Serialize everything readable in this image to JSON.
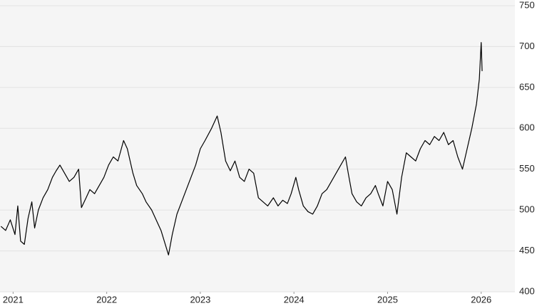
{
  "chart_data": {
    "type": "line",
    "color": "#000000",
    "grid": true,
    "x": [
      2020.87,
      2020.92,
      2020.97,
      2021.02,
      2021.05,
      2021.08,
      2021.12,
      2021.16,
      2021.2,
      2021.23,
      2021.27,
      2021.32,
      2021.37,
      2021.42,
      2021.46,
      2021.5,
      2021.55,
      2021.6,
      2021.65,
      2021.7,
      2021.73,
      2021.78,
      2021.82,
      2021.87,
      2021.92,
      2021.97,
      2022.02,
      2022.07,
      2022.12,
      2022.18,
      2022.22,
      2022.28,
      2022.32,
      2022.38,
      2022.42,
      2022.48,
      2022.52,
      2022.58,
      2022.62,
      2022.66,
      2022.7,
      2022.75,
      2022.8,
      2022.85,
      2022.9,
      2022.95,
      2023.0,
      2023.05,
      2023.12,
      2023.18,
      2023.22,
      2023.27,
      2023.32,
      2023.37,
      2023.42,
      2023.47,
      2023.52,
      2023.57,
      2023.62,
      2023.67,
      2023.72,
      2023.78,
      2023.83,
      2023.88,
      2023.93,
      2023.97,
      2024.02,
      2024.05,
      2024.1,
      2024.15,
      2024.2,
      2024.25,
      2024.3,
      2024.35,
      2024.4,
      2024.45,
      2024.5,
      2024.55,
      2024.58,
      2024.62,
      2024.67,
      2024.72,
      2024.77,
      2024.82,
      2024.87,
      2024.9,
      2024.95,
      2025.0,
      2025.05,
      2025.1,
      2025.15,
      2025.2,
      2025.25,
      2025.3,
      2025.35,
      2025.4,
      2025.45,
      2025.5,
      2025.55,
      2025.6,
      2025.65,
      2025.7,
      2025.75,
      2025.8,
      2025.85,
      2025.9,
      2025.95,
      2025.98,
      2026.0,
      2026.01
    ],
    "values": [
      480,
      475,
      488,
      470,
      505,
      462,
      458,
      490,
      510,
      478,
      500,
      515,
      525,
      540,
      548,
      555,
      545,
      535,
      540,
      550,
      503,
      515,
      525,
      520,
      530,
      540,
      555,
      565,
      560,
      585,
      575,
      545,
      530,
      520,
      510,
      500,
      490,
      475,
      460,
      445,
      470,
      495,
      510,
      525,
      540,
      555,
      575,
      585,
      600,
      615,
      595,
      560,
      548,
      560,
      540,
      535,
      550,
      545,
      515,
      510,
      505,
      515,
      505,
      512,
      508,
      520,
      540,
      525,
      505,
      498,
      495,
      505,
      520,
      525,
      535,
      545,
      555,
      565,
      545,
      520,
      510,
      505,
      515,
      520,
      530,
      520,
      505,
      535,
      525,
      495,
      540,
      570,
      565,
      560,
      575,
      585,
      580,
      590,
      585,
      595,
      580,
      585,
      565,
      550,
      575,
      600,
      630,
      660,
      705,
      670
    ],
    "xlim": [
      2020.86,
      2026.36
    ],
    "xticks": [
      2021,
      2022,
      2023,
      2024,
      2025,
      2026
    ],
    "ylim": [
      400,
      750
    ],
    "yticks": [
      400,
      450,
      500,
      550,
      600,
      650,
      700,
      750
    ]
  }
}
